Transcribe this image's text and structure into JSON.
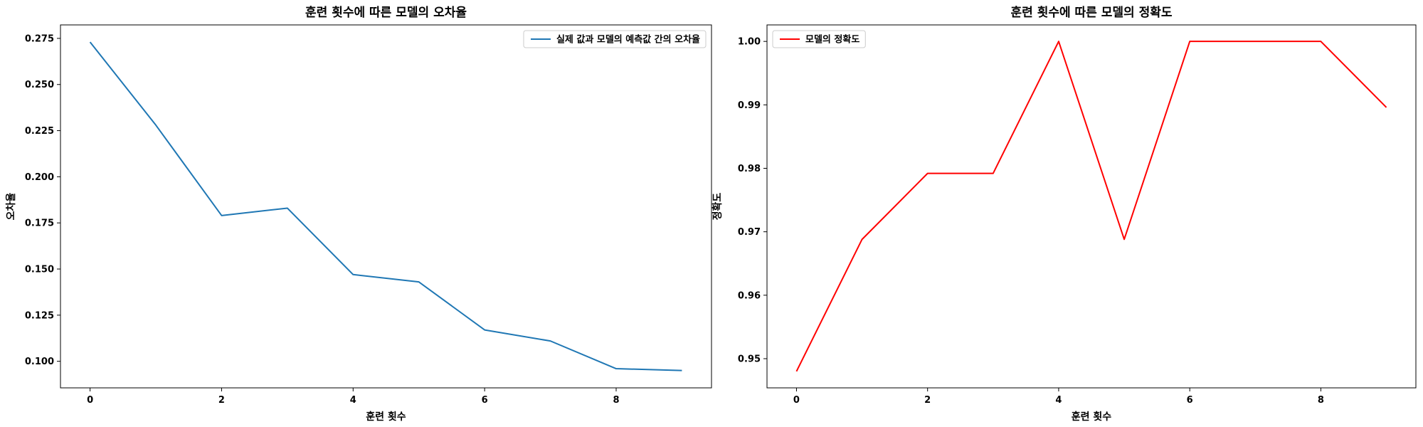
{
  "chart_data": [
    {
      "type": "line",
      "title": "훈련 횟수에 따른 모델의 오차율",
      "xlabel": "훈련 횟수",
      "ylabel": "오차율",
      "xlim": [
        -0.45,
        9.45
      ],
      "ylim": [
        0.0856,
        0.2823
      ],
      "xticks": [
        0,
        2,
        4,
        6,
        8
      ],
      "yticks": [
        0.1,
        0.125,
        0.15,
        0.175,
        0.2,
        0.225,
        0.25,
        0.275
      ],
      "ytick_decimals": 3,
      "legend_position": "upper right",
      "series": [
        {
          "name": "실제 값과 모델의 예측값 간의 오차율",
          "color": "#1f77b4",
          "x": [
            0,
            1,
            2,
            3,
            4,
            5,
            6,
            7,
            8,
            9
          ],
          "y": [
            0.273,
            0.228,
            0.179,
            0.183,
            0.147,
            0.143,
            0.117,
            0.111,
            0.096,
            0.095
          ]
        }
      ]
    },
    {
      "type": "line",
      "title": "훈련 횟수에 따른 모델의 정확도",
      "xlabel": "훈련 횟수",
      "ylabel": "정확도",
      "xlim": [
        -0.45,
        9.45
      ],
      "ylim": [
        0.9454,
        1.0026
      ],
      "xticks": [
        0,
        2,
        4,
        6,
        8
      ],
      "yticks": [
        0.95,
        0.96,
        0.97,
        0.98,
        0.99,
        1.0
      ],
      "ytick_decimals": 2,
      "legend_position": "upper left",
      "series": [
        {
          "name": "모델의 정확도",
          "color": "#ff0000",
          "x": [
            0,
            1,
            2,
            3,
            4,
            5,
            6,
            7,
            8,
            9
          ],
          "y": [
            0.948,
            0.9688,
            0.9792,
            0.9792,
            1.0,
            0.9688,
            1.0,
            1.0,
            1.0,
            0.9896
          ]
        }
      ]
    }
  ]
}
